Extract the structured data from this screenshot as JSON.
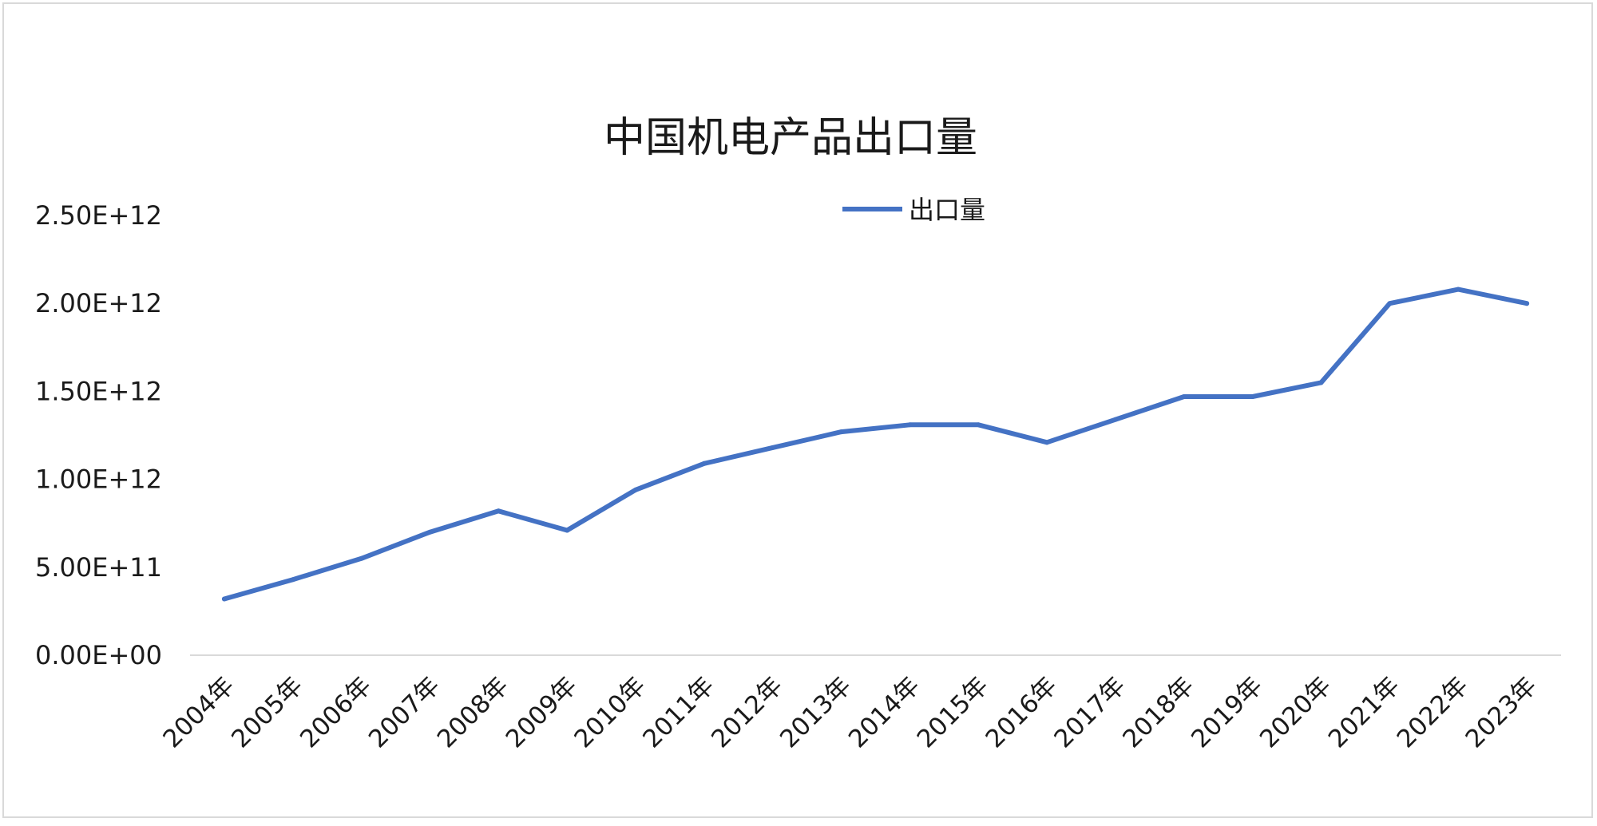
{
  "chart_data": {
    "type": "line",
    "title": "中国机电产品出口量",
    "xlabel": "",
    "ylabel": "",
    "categories": [
      "2004年",
      "2005年",
      "2006年",
      "2007年",
      "2008年",
      "2009年",
      "2010年",
      "2011年",
      "2012年",
      "2013年",
      "2014年",
      "2015年",
      "2016年",
      "2017年",
      "2018年",
      "2019年",
      "2020年",
      "2021年",
      "2022年",
      "2023年"
    ],
    "series": [
      {
        "name": "出口量",
        "color": "#4472C4",
        "values": [
          320000000000.0,
          430000000000.0,
          550000000000.0,
          700000000000.0,
          820000000000.0,
          710000000000.0,
          940000000000.0,
          1090000000000.0,
          1180000000000.0,
          1270000000000.0,
          1310000000000.0,
          1310000000000.0,
          1210000000000.0,
          1340000000000.0,
          1470000000000.0,
          1470000000000.0,
          1550000000000.0,
          2000000000000.0,
          2080000000000.0,
          2000000000000.0
        ]
      }
    ],
    "ylim": [
      0,
      2500000000000.0
    ],
    "yticks": [
      0,
      500000000000.0,
      1000000000000.0,
      1500000000000.0,
      2000000000000.0,
      2500000000000.0
    ],
    "ytick_labels": [
      "0.00E+00",
      "5.00E+11",
      "1.00E+12",
      "1.50E+12",
      "2.00E+12",
      "2.50E+12"
    ],
    "grid": false,
    "legend_position": "top-center"
  }
}
